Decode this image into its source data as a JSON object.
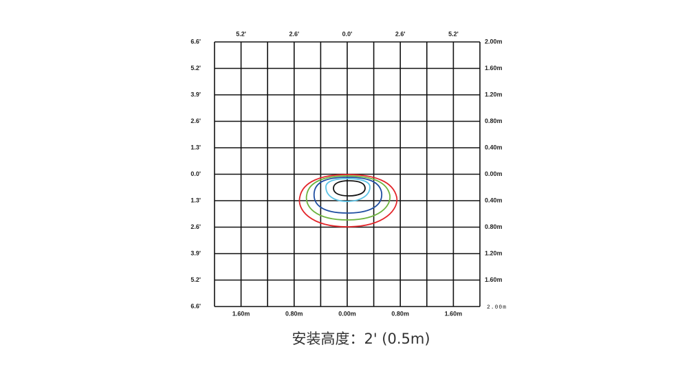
{
  "top_labels": [
    "5.2'",
    "2.6'",
    "0.0'",
    "2.6'",
    "5.2'"
  ],
  "left_labels": [
    "6.6'",
    "5.2'",
    "3.9'",
    "2.6'",
    "1.3'",
    "0.0'",
    "1.3'",
    "2.6'",
    "3.9'",
    "5.2'",
    "6.6'"
  ],
  "right_labels": [
    "2.00m",
    "1.60m",
    "1.20m",
    "0.80m",
    "0.40m",
    "0.00m",
    "0.40m",
    "0.80m",
    "1.20m",
    "1.60m",
    "2.00m"
  ],
  "bottom_labels": [
    "1.60m",
    "0.80m",
    "0.00m",
    "0.80m",
    "1.60m"
  ],
  "caption": "安装高度：2' (0.5m)"
}
